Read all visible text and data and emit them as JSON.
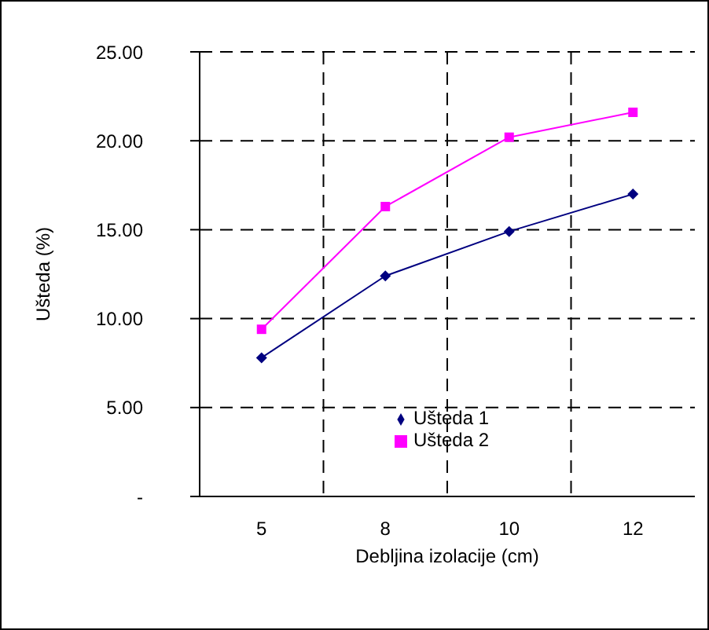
{
  "chart_data": {
    "type": "line",
    "xlabel": "Debljina izolacije (cm)",
    "ylabel": "Ušteda (%)",
    "categories": [
      "5",
      "8",
      "10",
      "12"
    ],
    "series": [
      {
        "name": "Ušteda 1",
        "color": "#000080",
        "values": [
          7.8,
          12.4,
          14.9,
          17.0
        ],
        "marker": "diamond"
      },
      {
        "name": "Ušteda 2",
        "color": "#ff00ff",
        "values": [
          9.4,
          16.3,
          20.2,
          21.6
        ],
        "marker": "square"
      }
    ],
    "ylim": [
      0,
      25
    ],
    "yticks": [
      {
        "value": 0,
        "label": "-"
      },
      {
        "value": 5,
        "label": "5.00"
      },
      {
        "value": 10,
        "label": "10.00"
      },
      {
        "value": 15,
        "label": "15.00"
      },
      {
        "value": 20,
        "label": "20.00"
      },
      {
        "value": 25,
        "label": "25.00"
      }
    ],
    "grid": true,
    "legend": "bottom right",
    "line_style": "solid"
  }
}
